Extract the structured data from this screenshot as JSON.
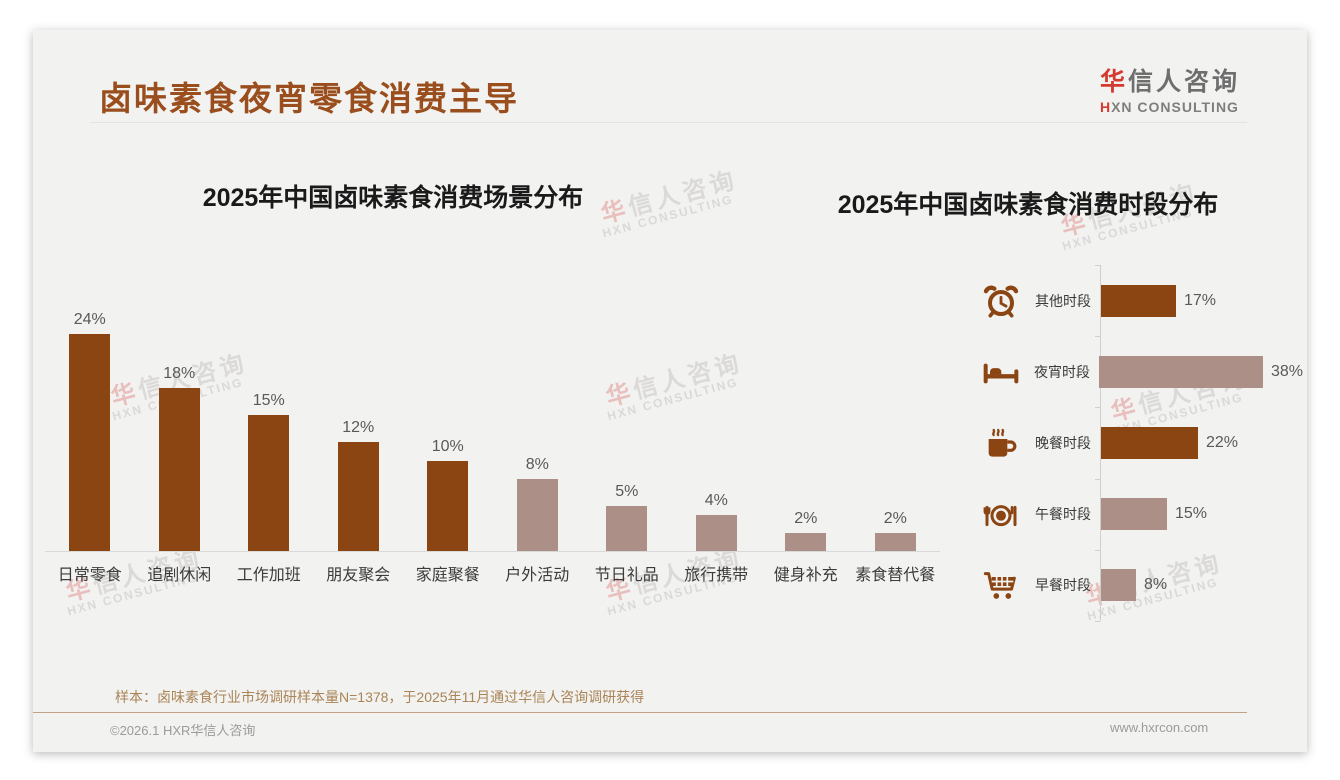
{
  "page": {
    "title": "卤味素食夜宵零食消费主导",
    "sample_note": "样本：卤味素食行业市场调研样本量N=1378，于2025年11月通过华信人咨询调研获得",
    "footer_left": "©2026.1 HXR华信人咨询",
    "footer_right": "www.hxrcon.com"
  },
  "logo": {
    "cn_first": "华",
    "cn_rest": "信人咨询",
    "en_first": "H",
    "en_rest": "XN CONSULTING"
  },
  "watermark": {
    "cn_first": "华",
    "cn_rest": "信人咨询",
    "en": "HXN CONSULTING"
  },
  "colors": {
    "title_brown": "#9A4E1D",
    "bar_dark_brown": "#8B4513",
    "bar_light_mauve": "#AC8F87",
    "logo_red": "#D43A2F",
    "note_tan": "#AA8456",
    "footer_gray": "#9B9B9B",
    "value_label_gray": "#595959"
  },
  "chart_data": [
    {
      "type": "bar",
      "orientation": "vertical",
      "title": "2025年中国卤味素食消费场景分布",
      "categories": [
        "日常零食",
        "追剧休闲",
        "工作加班",
        "朋友聚会",
        "家庭聚餐",
        "户外活动",
        "节日礼品",
        "旅行携带",
        "健身补充",
        "素食替代餐"
      ],
      "values": [
        24,
        18,
        15,
        12,
        10,
        8,
        5,
        4,
        2,
        2
      ],
      "unit": "%",
      "bar_colors": [
        "#8B4513",
        "#8B4513",
        "#8B4513",
        "#8B4513",
        "#8B4513",
        "#AC8F87",
        "#AC8F87",
        "#AC8F87",
        "#AC8F87",
        "#AC8F87"
      ],
      "ylim": [
        0,
        26
      ],
      "grid": false,
      "legend": "none",
      "value_labels": "above bars"
    },
    {
      "type": "bar",
      "orientation": "horizontal",
      "title": "2025年中国卤味素食消费时段分布",
      "categories": [
        "其他时段",
        "夜宵时段",
        "晚餐时段",
        "午餐时段",
        "早餐时段"
      ],
      "values": [
        17,
        38,
        22,
        15,
        8
      ],
      "unit": "%",
      "icons": [
        "alarm-clock-icon",
        "bed-icon",
        "coffee-icon",
        "dining-icon",
        "cart-icon"
      ],
      "bar_colors": [
        "#8B4513",
        "#AC8F87",
        "#8B4513",
        "#AC8F87",
        "#AC8F87"
      ],
      "xlim": [
        0,
        40
      ],
      "grid": false,
      "legend": "none",
      "value_labels": "right of bars"
    }
  ]
}
